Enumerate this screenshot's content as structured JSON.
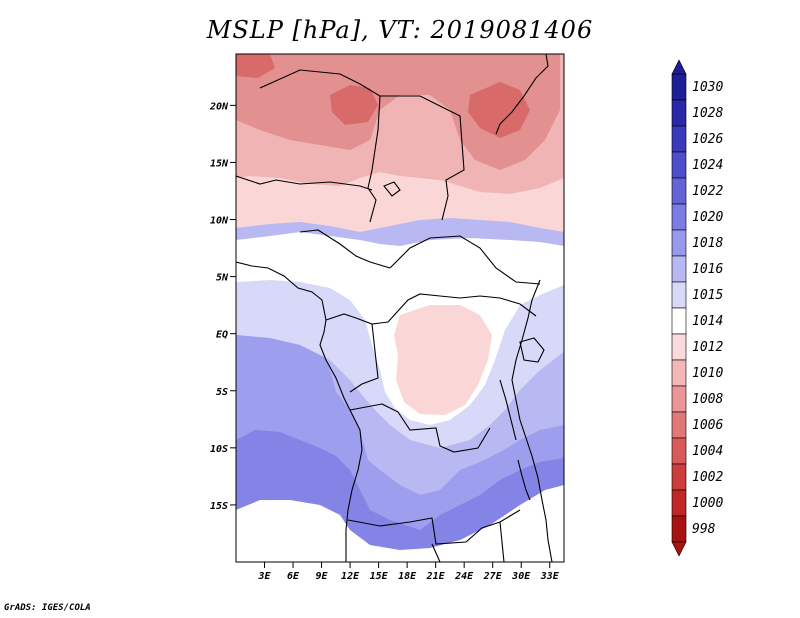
{
  "title": "MSLP [hPa], VT: 2019081406",
  "credit": "GrADS: IGES/COLA",
  "map": {
    "lat_labels": [
      "20N",
      "15N",
      "10N",
      "5N",
      "EQ",
      "5S",
      "10S",
      "15S"
    ],
    "lat_values": [
      20,
      15,
      10,
      5,
      0,
      -5,
      -10,
      -15
    ],
    "lon_labels": [
      "3E",
      "6E",
      "9E",
      "12E",
      "15E",
      "18E",
      "21E",
      "24E",
      "27E",
      "30E",
      "33E"
    ],
    "lon_values": [
      3,
      6,
      9,
      12,
      15,
      18,
      21,
      24,
      27,
      30,
      33
    ],
    "lat_range": [
      -20,
      24.5
    ],
    "lon_range": [
      0,
      34.5
    ]
  },
  "colorbar": {
    "levels": [
      "1030",
      "1028",
      "1026",
      "1024",
      "1022",
      "1020",
      "1018",
      "1016",
      "1015",
      "1014",
      "1012",
      "1010",
      "1008",
      "1006",
      "1004",
      "1002",
      "1000",
      "998"
    ],
    "colors": [
      "#1e1e96",
      "#2828a8",
      "#3a3aba",
      "#4e4ecb",
      "#6464d8",
      "#7c7ce4",
      "#9898ec",
      "#b8b8f2",
      "#d8d8f8",
      "#ffffff",
      "#fadada",
      "#f4b6b6",
      "#ea9696",
      "#e07878",
      "#d85a5a",
      "#ce3c3c",
      "#c02626",
      "#a81212"
    ]
  },
  "contours": {
    "colors": {
      "1004": "#d86a6a",
      "1008": "#e29090",
      "1010": "#f0b4b4",
      "1012": "#fad6d6",
      "1014": "#ffffff",
      "1015": "#d8d8f8",
      "1016": "#b8b8f2",
      "1018": "#9e9eee",
      "1020": "#8484e6"
    }
  }
}
